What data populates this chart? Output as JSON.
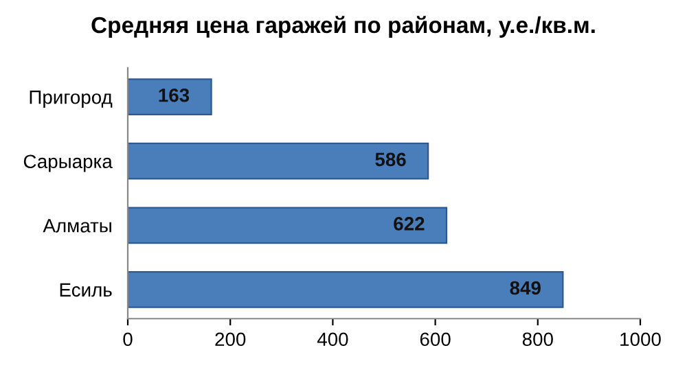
{
  "chart_data": {
    "type": "bar",
    "orientation": "horizontal",
    "title": "Средняя цена гаражей по районам, у.е./кв.м.",
    "categories": [
      "Пригород",
      "Сарыарка",
      "Алматы",
      "Есиль"
    ],
    "values": [
      163,
      586,
      622,
      849
    ],
    "color": "#4a7ebb",
    "xlim": [
      0,
      1000
    ],
    "xticks": [
      0,
      200,
      400,
      600,
      800,
      1000
    ],
    "grid": false,
    "data_labels": true
  }
}
